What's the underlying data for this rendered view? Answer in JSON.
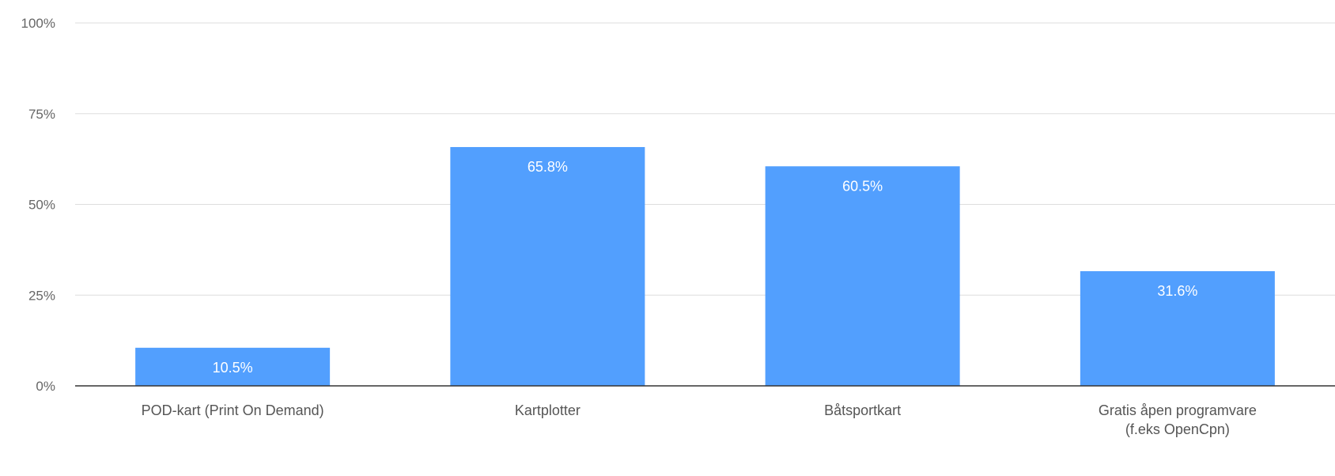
{
  "chart_data": {
    "type": "bar",
    "title": "",
    "xlabel": "",
    "ylabel": "",
    "categories": [
      [
        "POD-kart (Print On Demand)"
      ],
      [
        "Kartplotter"
      ],
      [
        "Båtsportkart"
      ],
      [
        "Gratis åpen programvare",
        "(f.eks OpenCpn)"
      ]
    ],
    "values": [
      10.5,
      65.8,
      60.5,
      31.6
    ],
    "value_labels": [
      "10.5%",
      "65.8%",
      "60.5%",
      "31.6%"
    ],
    "ylim": [
      0,
      100
    ],
    "yticks": [
      0,
      25,
      50,
      75,
      100
    ],
    "ytick_labels": [
      "0%",
      "25%",
      "50%",
      "75%",
      "100%"
    ],
    "grid": true,
    "legend": "none",
    "colors": {
      "bar": "#529ffe",
      "grid": "#dddddd",
      "axis": "#333333",
      "tick_text": "#666666",
      "category_text": "#555555",
      "bar_label": "#ffffff"
    }
  }
}
